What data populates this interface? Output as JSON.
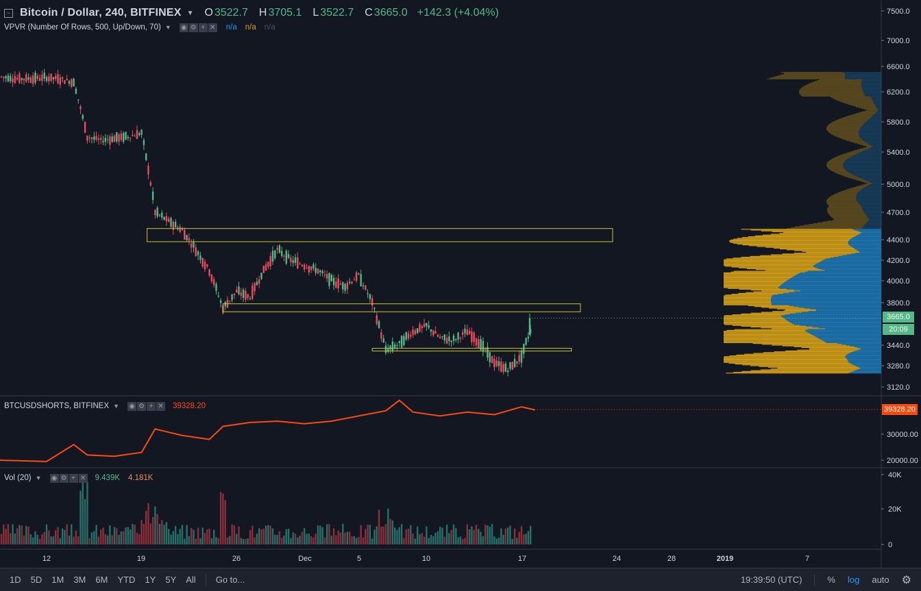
{
  "main_legend": {
    "symbol": "Bitcoin / Dollar, 240, BITFINEX",
    "open_key": "O",
    "open": "3522.7",
    "high_key": "H",
    "high": "3705.1",
    "low_key": "L",
    "low": "3522.7",
    "close_key": "C",
    "close": "3665.0",
    "change": "+142.3 (+4.04%)"
  },
  "vpvr_legend": {
    "label": "VPVR (Number Of Rows, 500, Up/Down, 70)",
    "values": [
      "n/a",
      "n/a",
      "n/a"
    ]
  },
  "shorts_legend": {
    "label": "BTCUSDSHORTS, BITFINEX",
    "value": "39328.20"
  },
  "vol_legend": {
    "label": "Vol (20)",
    "up": "9.439K",
    "down": "4.181K"
  },
  "price_axis": {
    "ticks": [
      "7500.0",
      "7000.0",
      "6600.0",
      "6200.0",
      "5800.0",
      "5400.0",
      "5000.0",
      "4700.0",
      "4400.0",
      "4200.0",
      "4000.0",
      "3800.0",
      "3440.0",
      "3280.0",
      "3120.0"
    ],
    "current_price": "3665.0",
    "countdown": "20:09"
  },
  "shorts_axis": {
    "ticks": [
      "30000.00",
      "20000.00"
    ],
    "current": "39328.20"
  },
  "vol_axis": {
    "ticks": [
      "40K",
      "20K",
      "0"
    ]
  },
  "time_axis": {
    "ticks": [
      "12",
      "19",
      "26",
      "Dec",
      "5",
      "10",
      "17",
      "24",
      "28",
      "2019",
      "7"
    ]
  },
  "bottom_bar": {
    "ranges": [
      "1D",
      "5D",
      "1M",
      "3M",
      "6M",
      "YTD",
      "1Y",
      "5Y",
      "All"
    ],
    "goto": "Go to...",
    "clock": "19:39:50 (UTC)",
    "percent": "%",
    "log": "log",
    "auto": "auto"
  },
  "colors": {
    "background": "#131722",
    "up": "#53b987",
    "down": "#eb4d5c",
    "shorts_line": "#ff4a0f",
    "vpvr_up": "#1e77b4",
    "vpvr_down": "#d4a017",
    "box_border": "#c8c632"
  },
  "chart_data": [
    {
      "type": "candlestick",
      "title": "Bitcoin / Dollar, 240, BITFINEX",
      "x_ticks": [
        "12",
        "19",
        "26",
        "Dec",
        "5",
        "10",
        "17",
        "24",
        "28",
        "2019",
        "7"
      ],
      "y_scale": "log",
      "y_ticks": [
        7500,
        7000,
        6600,
        6200,
        5800,
        5400,
        5000,
        4700,
        4400,
        4200,
        4000,
        3800,
        3440,
        3280,
        3120
      ],
      "close_path": [
        [
          "Nov 8",
          6450
        ],
        [
          "Nov 10",
          6400
        ],
        [
          "Nov 12",
          6420
        ],
        [
          "Nov 13",
          6400
        ],
        [
          "Nov 14",
          6350
        ],
        [
          "Nov 15",
          5600
        ],
        [
          "Nov 16",
          5550
        ],
        [
          "Nov 17",
          5580
        ],
        [
          "Nov 18",
          5600
        ],
        [
          "Nov 19",
          5650
        ],
        [
          "Nov 20",
          4700
        ],
        [
          "Nov 21",
          4600
        ],
        [
          "Nov 22",
          4500
        ],
        [
          "Nov 23",
          4300
        ],
        [
          "Nov 24",
          4100
        ],
        [
          "Nov 25",
          3750
        ],
        [
          "Nov 26",
          3900
        ],
        [
          "Nov 27",
          3850
        ],
        [
          "Nov 28",
          4100
        ],
        [
          "Nov 29",
          4300
        ],
        [
          "Nov 30",
          4200
        ],
        [
          "Dec 1",
          4150
        ],
        [
          "Dec 2",
          4100
        ],
        [
          "Dec 3",
          4000
        ],
        [
          "Dec 4",
          3950
        ],
        [
          "Dec 5",
          4050
        ],
        [
          "Dec 6",
          3800
        ],
        [
          "Dec 7",
          3400
        ],
        [
          "Dec 8",
          3450
        ],
        [
          "Dec 9",
          3550
        ],
        [
          "Dec 10",
          3600
        ],
        [
          "Dec 11",
          3500
        ],
        [
          "Dec 12",
          3480
        ],
        [
          "Dec 13",
          3550
        ],
        [
          "Dec 14",
          3450
        ],
        [
          "Dec 15",
          3300
        ],
        [
          "Dec 16",
          3250
        ],
        [
          "Dec 17",
          3350
        ],
        [
          "Dec 18",
          3665
        ]
      ],
      "annotations": [
        {
          "type": "rectangle",
          "price_low": 4380,
          "price_high": 4520,
          "from": "Nov 19",
          "to": "Dec 26"
        },
        {
          "type": "rectangle",
          "price_low": 3720,
          "price_high": 3790,
          "from": "Nov 25",
          "to": "Dec 23"
        },
        {
          "type": "rectangle",
          "price_low": 3395,
          "price_high": 3415,
          "from": "Dec 6",
          "to": "Dec 23"
        }
      ]
    },
    {
      "type": "line",
      "title": "BTCUSDSHORTS, BITFINEX",
      "y_ticks": [
        30000,
        20000
      ],
      "x": [
        "Nov 8",
        "Nov 12",
        "Nov 14",
        "Nov 15",
        "Nov 17",
        "Nov 19",
        "Nov 20",
        "Nov 22",
        "Nov 24",
        "Nov 25",
        "Nov 27",
        "Nov 29",
        "Dec 1",
        "Dec 3",
        "Dec 5",
        "Dec 7",
        "Dec 8",
        "Dec 9",
        "Dec 11",
        "Dec 13",
        "Dec 15",
        "Dec 17",
        "Dec 18"
      ],
      "values": [
        20000,
        19500,
        26000,
        22000,
        21500,
        23000,
        32000,
        29500,
        28000,
        33000,
        34500,
        35000,
        34000,
        35000,
        37000,
        39000,
        43000,
        38500,
        37000,
        38500,
        37500,
        40500,
        39328
      ]
    },
    {
      "type": "bar",
      "title": "Vol (20)",
      "y_ticks": [
        40000,
        20000,
        0
      ],
      "notes": "volume bars per 4h candle, colored by up/down"
    }
  ]
}
